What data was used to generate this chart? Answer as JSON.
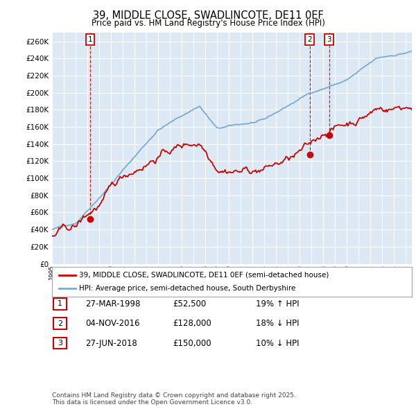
{
  "title": "39, MIDDLE CLOSE, SWADLINCOTE, DE11 0EF",
  "subtitle": "Price paid vs. HM Land Registry's House Price Index (HPI)",
  "legend_property": "39, MIDDLE CLOSE, SWADLINCOTE, DE11 0EF (semi-detached house)",
  "legend_hpi": "HPI: Average price, semi-detached house, South Derbyshire",
  "footnote": "Contains HM Land Registry data © Crown copyright and database right 2025.\nThis data is licensed under the Open Government Licence v3.0.",
  "table_rows": [
    {
      "num": "1",
      "date": "27-MAR-1998",
      "price": "£52,500",
      "hpi": "19% ↑ HPI"
    },
    {
      "num": "2",
      "date": "04-NOV-2016",
      "price": "£128,000",
      "hpi": "18% ↓ HPI"
    },
    {
      "num": "3",
      "date": "27-JUN-2018",
      "price": "£150,000",
      "hpi": "10% ↓ HPI"
    }
  ],
  "sale_points": [
    {
      "year": 1998.23,
      "price": 52500,
      "label": "1"
    },
    {
      "year": 2016.84,
      "price": 128000,
      "label": "2"
    },
    {
      "year": 2018.48,
      "price": 150000,
      "label": "3"
    }
  ],
  "red_color": "#cc0000",
  "blue_color": "#7aabcf",
  "plot_bg_color": "#dce9f5",
  "bg_color": "#ffffff",
  "grid_color": "#ffffff",
  "ylim": [
    0,
    270000
  ],
  "xlim_start": 1995.0,
  "xlim_end": 2025.5
}
